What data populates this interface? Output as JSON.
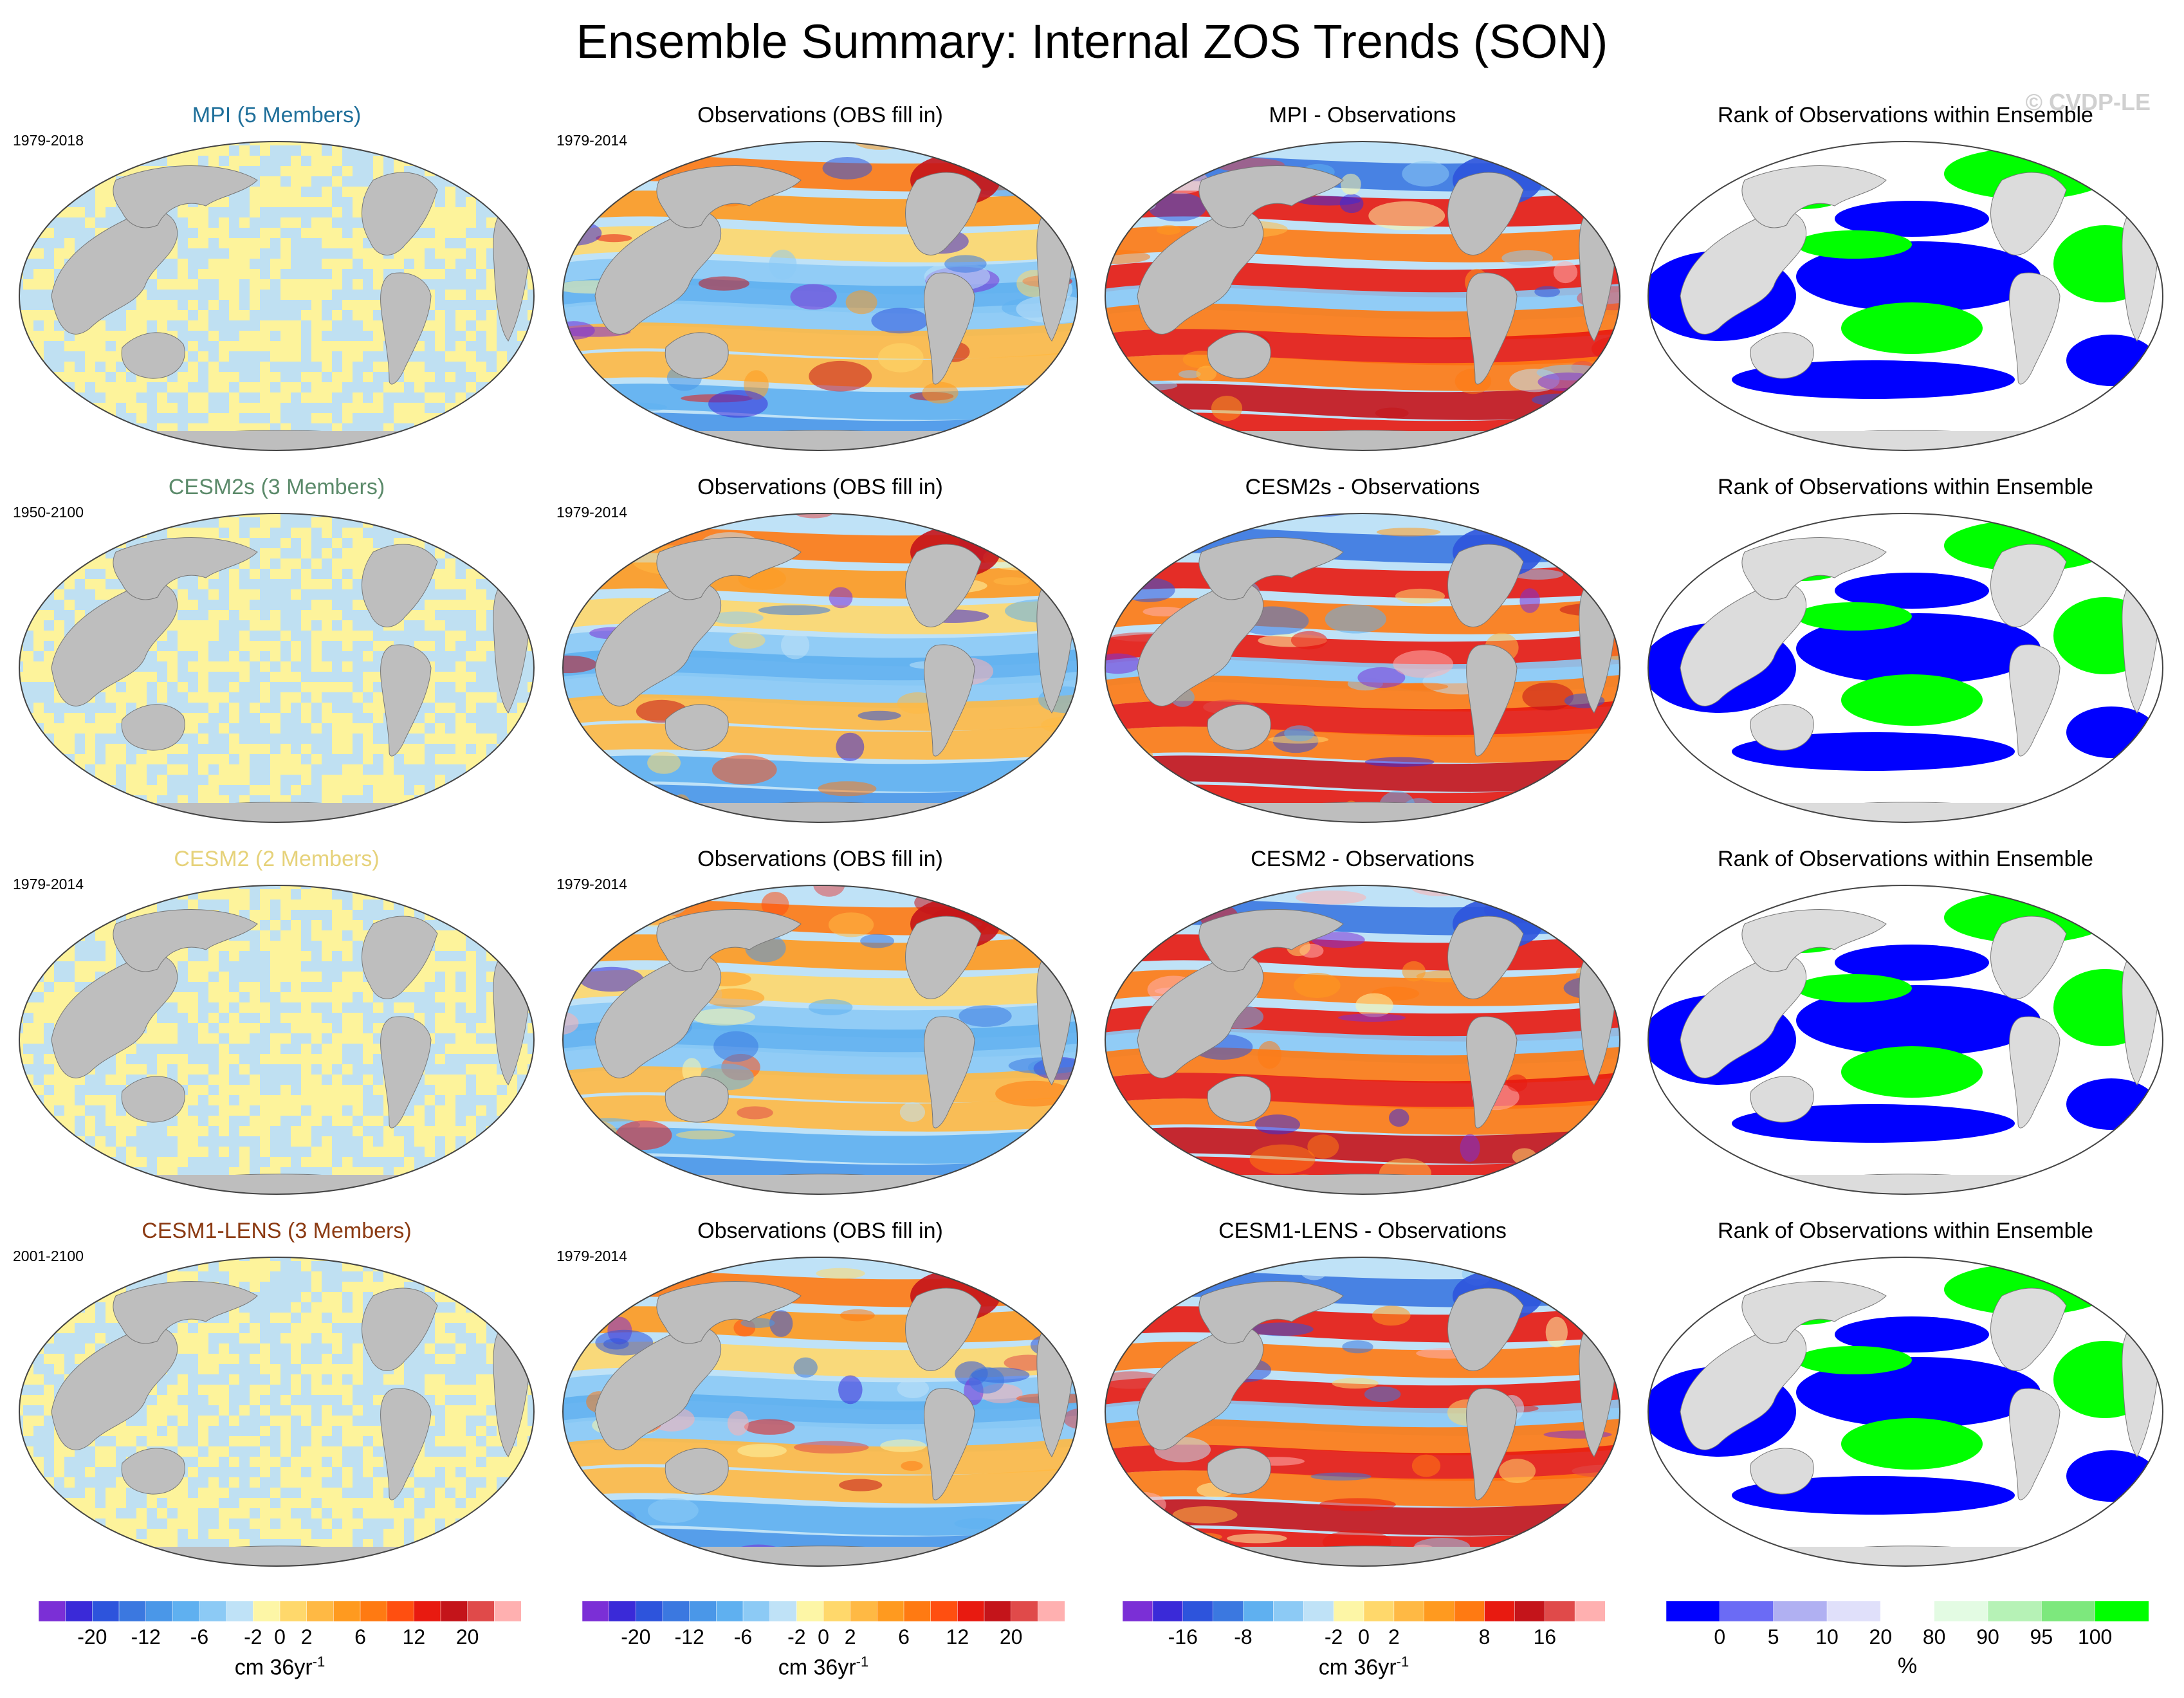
{
  "title": "Ensemble Summary: Internal ZOS Trends (SON)",
  "watermark": "© CVDP-LE",
  "colors": {
    "land": "#bebebe",
    "land_light": "#dcdcdc",
    "ocean_noise_a": "#fdf39b",
    "ocean_noise_b": "#bfe0f2",
    "rank_low": "#0000ff",
    "rank_mid": "#ffffff",
    "rank_high": "#00ff00"
  },
  "rows": [
    {
      "model_title": "MPI (5 Members)",
      "model_color": "#1f6f9a",
      "model_period": "1979-2018",
      "obs_title": "Observations (OBS fill in)",
      "obs_period": "1979-2014",
      "diff_title": "MPI - Observations",
      "rank_title": "Rank of Observations within Ensemble"
    },
    {
      "model_title": "CESM2s (3 Members)",
      "model_color": "#5b8a6a",
      "model_period": "1950-2100",
      "obs_title": "Observations (OBS fill in)",
      "obs_period": "1979-2014",
      "diff_title": "CESM2s - Observations",
      "rank_title": "Rank of Observations within Ensemble"
    },
    {
      "model_title": "CESM2 (2 Members)",
      "model_color": "#e6d27a",
      "model_period": "1979-2014",
      "obs_title": "Observations (OBS fill in)",
      "obs_period": "1979-2014",
      "diff_title": "CESM2 - Observations",
      "rank_title": "Rank of Observations within Ensemble"
    },
    {
      "model_title": "CESM1-LENS (3 Members)",
      "model_color": "#8b3a12",
      "model_period": "2001-2100",
      "obs_title": "Observations (OBS fill in)",
      "obs_period": "1979-2014",
      "diff_title": "CESM1-LENS - Observations",
      "rank_title": "Rank of Observations within Ensemble"
    }
  ],
  "chart_data": [
    {
      "type": "heatmap",
      "name": "trend colorbar (model & observations)",
      "levels": [
        -24,
        -20,
        -16,
        -12,
        -8,
        -6,
        -4,
        -2,
        0,
        2,
        4,
        6,
        8,
        12,
        16,
        20,
        24
      ],
      "tick_labels": [
        "-20",
        "-12",
        "-6",
        "-2",
        "0",
        "2",
        "6",
        "12",
        "20"
      ],
      "tick_values": [
        -20,
        -12,
        -6,
        -2,
        0,
        2,
        6,
        12,
        20
      ],
      "unit_label": "cm 36yr",
      "unit_exp": "-1",
      "colors": [
        "#7b2fd6",
        "#3a2ad8",
        "#2d54dc",
        "#3b78e0",
        "#4a97e8",
        "#5fb0f0",
        "#8ccaf5",
        "#bfe2f7",
        "#fdf6a6",
        "#ffd86b",
        "#ffb944",
        "#ff9a1f",
        "#ff7a12",
        "#ff4f10",
        "#e81a10",
        "#c4141a",
        "#e04a4a",
        "#ffb0b0"
      ]
    },
    {
      "type": "heatmap",
      "name": "difference colorbar",
      "levels": [
        -20,
        -16,
        -12,
        -8,
        -6,
        -4,
        -2,
        0,
        2,
        4,
        6,
        8,
        12,
        16,
        20
      ],
      "tick_labels": [
        "-16",
        "-8",
        "-2",
        "0",
        "2",
        "8",
        "16"
      ],
      "tick_values": [
        -16,
        -8,
        -2,
        0,
        2,
        8,
        16
      ],
      "unit_label": "cm 36yr",
      "unit_exp": "-1",
      "colors": [
        "#7b2fd6",
        "#3a2ad8",
        "#2d54dc",
        "#3b78e0",
        "#5fb0f0",
        "#8ccaf5",
        "#bfe2f7",
        "#fdf6a6",
        "#ffd86b",
        "#ffb944",
        "#ff9a1f",
        "#ff7a12",
        "#e81a10",
        "#c4141a",
        "#e04a4a",
        "#ffb0b0"
      ]
    },
    {
      "type": "heatmap",
      "name": "rank colorbar",
      "levels": [
        0,
        5,
        10,
        20,
        80,
        90,
        95,
        100
      ],
      "tick_labels": [
        "0",
        "5",
        "10",
        "20",
        "80",
        "90",
        "95",
        "100"
      ],
      "tick_values": [
        0,
        5,
        10,
        20,
        80,
        90,
        95,
        100
      ],
      "unit_label": "%",
      "colors": [
        "#0000ff",
        "#6b6bf5",
        "#b0b0f2",
        "#e0e0fa",
        "#ffffff",
        "#e3fbe3",
        "#b6f2b6",
        "#7de87d",
        "#00ff00"
      ]
    }
  ]
}
